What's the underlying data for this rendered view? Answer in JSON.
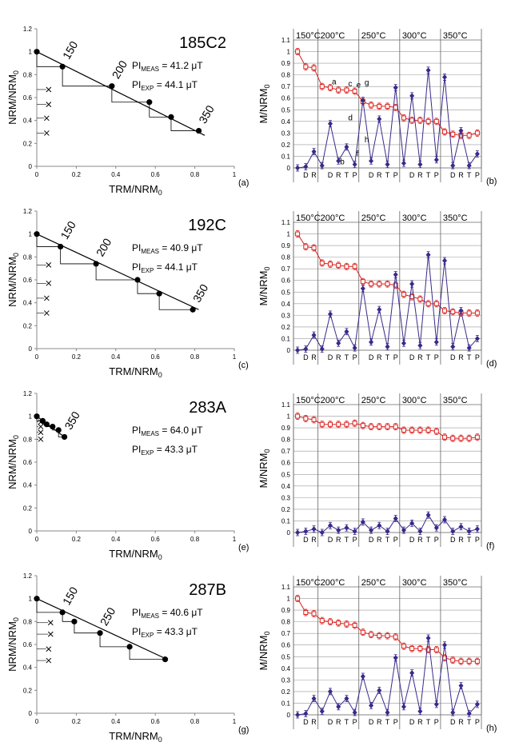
{
  "figure": {
    "rows": [
      {
        "left": {
          "panel_label": "(a)",
          "sample": "185C2",
          "pi_meas": "41.2 μT",
          "pi_exp": "44.1 μT",
          "pi_label": "PI",
          "meas_sub": "MEAS",
          "exp_sub": "EXP",
          "xlabel_main": "TRM/NRM",
          "ylabel_main": "NRM/NRM",
          "label_sub": "0",
          "temp_labels": [
            {
              "text": "150",
              "at": 1
            },
            {
              "text": "200",
              "at": 2
            },
            {
              "text": "350",
              "at": 5
            }
          ]
        },
        "right": {
          "panel_label": "(b)",
          "ylabel_main": "M/NRM",
          "ylabel_sub": "0",
          "temps": [
            "150°C",
            "200°C",
            "250°C",
            "300°C",
            "350°C"
          ],
          "letters": [
            {
              "t": "a",
              "i": 4,
              "v": 0.72
            },
            {
              "t": "b",
              "i": 5,
              "v": 0.03
            },
            {
              "t": "c",
              "i": 6,
              "v": 0.7
            },
            {
              "t": "d",
              "i": 6,
              "v": 0.41
            },
            {
              "t": "e",
              "i": 7,
              "v": 0.69
            },
            {
              "t": "f",
              "i": 7,
              "v": 0.1
            },
            {
              "t": "g",
              "i": 8,
              "v": 0.71
            },
            {
              "t": "h",
              "i": 8,
              "v": 0.22
            }
          ]
        }
      },
      {
        "left": {
          "panel_label": "(c)",
          "sample": "192C",
          "pi_meas": "40.9 μT",
          "pi_exp": "44.1 μT",
          "pi_label": "PI",
          "meas_sub": "MEAS",
          "exp_sub": "EXP",
          "xlabel_main": "TRM/NRM",
          "ylabel_main": "NRM/NRM",
          "label_sub": "0",
          "temp_labels": [
            {
              "text": "150",
              "at": 1
            },
            {
              "text": "200",
              "at": 2
            },
            {
              "text": "350",
              "at": 5
            }
          ]
        },
        "right": {
          "panel_label": "(d)",
          "ylabel_main": "M/NRM",
          "ylabel_sub": "0",
          "temps": [
            "150°C",
            "200°C",
            "250°C",
            "300°C",
            "350°C"
          ],
          "letters": []
        }
      },
      {
        "left": {
          "panel_label": "(e)",
          "sample": "283A",
          "pi_meas": "64.0 μT",
          "pi_exp": "43.3 μT",
          "pi_label": "PI",
          "meas_sub": "MEAS",
          "exp_sub": "EXP",
          "xlabel_main": "TRM/NRM",
          "ylabel_main": "NRM/NRM",
          "label_sub": "0",
          "temp_labels": [
            {
              "text": "350",
              "at": 5
            }
          ]
        },
        "right": {
          "panel_label": "(f)",
          "ylabel_main": "M/NRM",
          "ylabel_sub": "0",
          "temps": [
            "150°C",
            "200°C",
            "250°C",
            "300°C",
            "350°C"
          ],
          "letters": []
        }
      },
      {
        "left": {
          "panel_label": "(g)",
          "sample": "287B",
          "pi_meas": "40.6 μT",
          "pi_exp": "43.3 μT",
          "pi_label": "PI",
          "meas_sub": "MEAS",
          "exp_sub": "EXP",
          "xlabel_main": "TRM/NRM",
          "ylabel_main": "NRM/NRM",
          "label_sub": "0",
          "temp_labels": [
            {
              "text": "150",
              "at": 1
            },
            {
              "text": "250",
              "at": 3
            }
          ]
        },
        "right": {
          "panel_label": "(h)",
          "ylabel_main": "M/NRM",
          "ylabel_sub": "0",
          "temps": [
            "150°C",
            "200°C",
            "250°C",
            "300°C",
            "350°C"
          ],
          "letters": []
        }
      }
    ]
  },
  "chart_data": [
    {
      "panel": "(a)",
      "type": "scatter",
      "xlabel": "TRM/NRM0",
      "ylabel": "NRM/NRM0",
      "xlim": [
        0,
        1
      ],
      "ylim": [
        0,
        1.2
      ],
      "xticks": [
        "0",
        "0.2",
        "0.4",
        "0.6",
        "0.8",
        "1"
      ],
      "yticks": [
        "0",
        "0.2",
        "0.4",
        "0.6",
        "0.8",
        "1",
        "1.2"
      ],
      "fit_line": [
        [
          0,
          1.0
        ],
        [
          0.85,
          0.27
        ]
      ],
      "points": [
        [
          0,
          1.0
        ],
        [
          0.13,
          0.87
        ],
        [
          0.38,
          0.7
        ],
        [
          0.57,
          0.56
        ],
        [
          0.68,
          0.43
        ],
        [
          0.82,
          0.31
        ]
      ],
      "ptrm_x": [
        0.06,
        0.06,
        0.05,
        0.05
      ],
      "ptrm_y": [
        0.67,
        0.54,
        0.42,
        0.29
      ]
    },
    {
      "panel": "(b)",
      "type": "line",
      "ylabel": "M/NRM0",
      "ylim": [
        0,
        1.1
      ],
      "yticks": [
        "0",
        "0.1",
        "0.2",
        "0.3",
        "0.4",
        "0.5",
        "0.6",
        "0.7",
        "0.8",
        "0.9",
        "1",
        "1.1"
      ],
      "categories": [
        "",
        "D",
        "R",
        "",
        "D",
        "R",
        "T",
        "P",
        "",
        "D",
        "R",
        "T",
        "P",
        "",
        "D",
        "R",
        "T",
        "P",
        "",
        "D",
        "R",
        "T",
        "P"
      ],
      "series": [
        {
          "color": "#d9221f",
          "values": [
            1.0,
            0.87,
            0.86,
            0.7,
            0.69,
            0.67,
            0.67,
            0.66,
            0.57,
            0.54,
            0.53,
            0.53,
            0.52,
            0.43,
            0.41,
            0.41,
            0.4,
            0.4,
            0.31,
            0.29,
            0.28,
            0.28,
            0.3
          ]
        },
        {
          "color": "#3a2a8a",
          "values": [
            0.0,
            0.01,
            0.14,
            0.02,
            0.38,
            0.06,
            0.18,
            0.03,
            0.58,
            0.06,
            0.42,
            0.03,
            0.69,
            0.04,
            0.62,
            0.03,
            0.84,
            0.07,
            0.78,
            0.02,
            0.32,
            0.02,
            0.12
          ]
        }
      ]
    },
    {
      "panel": "(c)",
      "type": "scatter",
      "xlabel": "TRM/NRM0",
      "ylabel": "NRM/NRM0",
      "xlim": [
        0,
        1
      ],
      "ylim": [
        0,
        1.2
      ],
      "xticks": [
        "0",
        "0.2",
        "0.4",
        "0.6",
        "0.8",
        "1"
      ],
      "yticks": [
        "0",
        "0.2",
        "0.4",
        "0.6",
        "0.8",
        "1",
        "1.2"
      ],
      "fit_line": [
        [
          0,
          1.0
        ],
        [
          0.82,
          0.34
        ]
      ],
      "points": [
        [
          0,
          1.0
        ],
        [
          0.12,
          0.89
        ],
        [
          0.3,
          0.74
        ],
        [
          0.51,
          0.6
        ],
        [
          0.62,
          0.48
        ],
        [
          0.79,
          0.34
        ]
      ],
      "ptrm_x": [
        0.06,
        0.06,
        0.05,
        0.05
      ],
      "ptrm_y": [
        0.73,
        0.57,
        0.44,
        0.31
      ]
    },
    {
      "panel": "(d)",
      "type": "line",
      "ylabel": "M/NRM0",
      "ylim": [
        0,
        1.1
      ],
      "yticks": [
        "0",
        "0.1",
        "0.2",
        "0.3",
        "0.4",
        "0.5",
        "0.6",
        "0.7",
        "0.8",
        "0.9",
        "1",
        "1.1"
      ],
      "categories": [
        "",
        "D",
        "R",
        "",
        "D",
        "R",
        "T",
        "P",
        "",
        "D",
        "R",
        "T",
        "P",
        "",
        "D",
        "R",
        "T",
        "P",
        "",
        "D",
        "R",
        "T",
        "P"
      ],
      "series": [
        {
          "color": "#d9221f",
          "values": [
            1.0,
            0.89,
            0.88,
            0.75,
            0.74,
            0.73,
            0.72,
            0.72,
            0.59,
            0.57,
            0.57,
            0.57,
            0.56,
            0.48,
            0.46,
            0.44,
            0.4,
            0.4,
            0.34,
            0.33,
            0.32,
            0.32,
            0.32
          ]
        },
        {
          "color": "#3a2a8a",
          "values": [
            0.0,
            0.01,
            0.13,
            0.01,
            0.31,
            0.06,
            0.16,
            0.02,
            0.53,
            0.07,
            0.35,
            0.03,
            0.65,
            0.06,
            0.57,
            0.04,
            0.82,
            0.07,
            0.77,
            0.03,
            0.34,
            0.02,
            0.1
          ]
        }
      ]
    },
    {
      "panel": "(e)",
      "type": "scatter",
      "xlabel": "TRM/NRM0",
      "ylabel": "NRM/NRM0",
      "xlim": [
        0,
        1
      ],
      "ylim": [
        0,
        1.2
      ],
      "xticks": [
        "0",
        "0.2",
        "0.4",
        "0.6",
        "0.8",
        "1"
      ],
      "yticks": [
        "0",
        "0.2",
        "0.4",
        "0.6",
        "0.8",
        "1",
        "1.2"
      ],
      "fit_line": [
        [
          0,
          1.0
        ],
        [
          0.14,
          0.82
        ]
      ],
      "points": [
        [
          0,
          1.0
        ],
        [
          0.03,
          0.96
        ],
        [
          0.05,
          0.93
        ],
        [
          0.08,
          0.91
        ],
        [
          0.11,
          0.88
        ],
        [
          0.14,
          0.82
        ]
      ],
      "ptrm_x": [
        0.02,
        0.02,
        0.02,
        0.02
      ],
      "ptrm_y": [
        0.95,
        0.91,
        0.86,
        0.8
      ]
    },
    {
      "panel": "(f)",
      "type": "line",
      "ylabel": "M/NRM0",
      "ylim": [
        0,
        1.1
      ],
      "yticks": [
        "0",
        "0.1",
        "0.2",
        "0.3",
        "0.4",
        "0.5",
        "0.6",
        "0.7",
        "0.8",
        "0.9",
        "1",
        "1.1"
      ],
      "categories": [
        "",
        "D",
        "R",
        "",
        "D",
        "R",
        "T",
        "P",
        "",
        "D",
        "R",
        "T",
        "P",
        "",
        "D",
        "R",
        "T",
        "P",
        "",
        "D",
        "R",
        "T",
        "P"
      ],
      "series": [
        {
          "color": "#d9221f",
          "values": [
            1.0,
            0.98,
            0.97,
            0.93,
            0.93,
            0.93,
            0.93,
            0.94,
            0.92,
            0.91,
            0.91,
            0.91,
            0.91,
            0.88,
            0.88,
            0.88,
            0.88,
            0.87,
            0.82,
            0.81,
            0.81,
            0.81,
            0.82
          ]
        },
        {
          "color": "#3a2a8a",
          "values": [
            0.0,
            0.01,
            0.03,
            0.0,
            0.06,
            0.02,
            0.04,
            0.01,
            0.09,
            0.02,
            0.06,
            0.01,
            0.12,
            0.02,
            0.08,
            0.01,
            0.15,
            0.04,
            0.11,
            0.01,
            0.05,
            0.01,
            0.03
          ]
        }
      ]
    },
    {
      "panel": "(g)",
      "type": "scatter",
      "xlabel": "TRM/NRM0",
      "ylabel": "NRM/NRM0",
      "xlim": [
        0,
        1
      ],
      "ylim": [
        0,
        1.2
      ],
      "xticks": [
        "0",
        "0.2",
        "0.4",
        "0.6",
        "0.8",
        "1"
      ],
      "yticks": [
        "0",
        "0.2",
        "0.4",
        "0.6",
        "0.8",
        "1",
        "1.2"
      ],
      "fit_line": [
        [
          0,
          1.0
        ],
        [
          0.66,
          0.47
        ]
      ],
      "points": [
        [
          0,
          1.0
        ],
        [
          0.13,
          0.88
        ],
        [
          0.19,
          0.8
        ],
        [
          0.32,
          0.7
        ],
        [
          0.47,
          0.58
        ],
        [
          0.65,
          0.47
        ]
      ],
      "ptrm_x": [
        0.07,
        0.07,
        0.06,
        0.06
      ],
      "ptrm_y": [
        0.79,
        0.69,
        0.56,
        0.46
      ]
    },
    {
      "panel": "(h)",
      "type": "line",
      "ylabel": "M/NRM0",
      "ylim": [
        0,
        1.1
      ],
      "yticks": [
        "0",
        "0.1",
        "0.2",
        "0.3",
        "0.4",
        "0.5",
        "0.6",
        "0.7",
        "0.8",
        "0.9",
        "1",
        "1.1"
      ],
      "categories": [
        "",
        "D",
        "R",
        "",
        "D",
        "R",
        "T",
        "P",
        "",
        "D",
        "R",
        "T",
        "P",
        "",
        "D",
        "R",
        "T",
        "P",
        "",
        "D",
        "R",
        "T",
        "P"
      ],
      "series": [
        {
          "color": "#d9221f",
          "values": [
            1.0,
            0.88,
            0.87,
            0.81,
            0.8,
            0.79,
            0.78,
            0.77,
            0.71,
            0.69,
            0.68,
            0.68,
            0.67,
            0.59,
            0.57,
            0.57,
            0.56,
            0.56,
            0.49,
            0.47,
            0.46,
            0.46,
            0.46
          ]
        },
        {
          "color": "#3a2a8a",
          "values": [
            0.0,
            0.01,
            0.14,
            0.03,
            0.2,
            0.07,
            0.14,
            0.02,
            0.33,
            0.08,
            0.21,
            0.02,
            0.49,
            0.07,
            0.36,
            0.03,
            0.66,
            0.09,
            0.6,
            0.02,
            0.25,
            0.01,
            0.09
          ]
        }
      ]
    }
  ]
}
